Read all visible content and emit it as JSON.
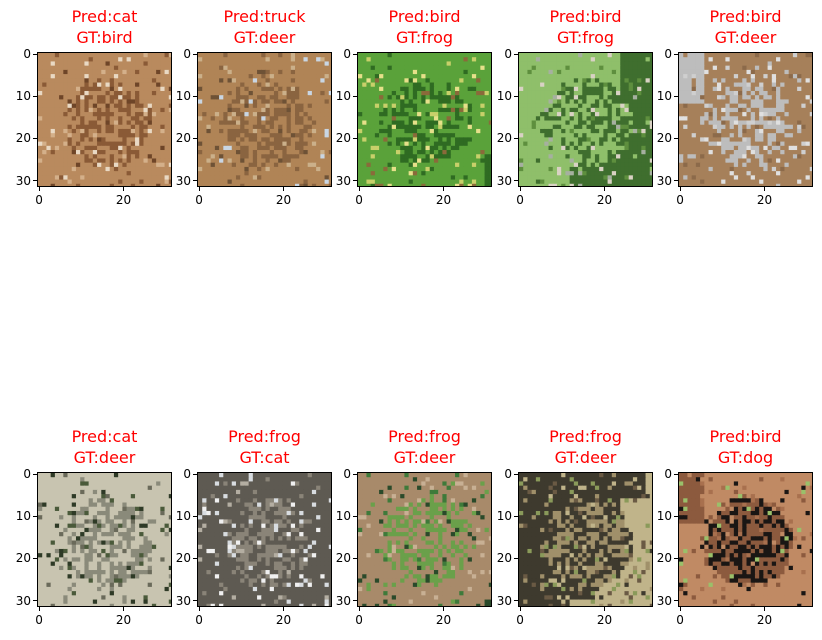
{
  "chart_data": {
    "type": "image-grid",
    "rows": 2,
    "cols": 5,
    "image_size": [
      32,
      32
    ],
    "xlim": [
      -0.5,
      31.5
    ],
    "ylim": [
      31.5,
      -0.5
    ],
    "x_ticks": [
      0,
      20
    ],
    "y_ticks": [
      0,
      10,
      20,
      30
    ],
    "title_color": "#ff0000",
    "panels": [
      {
        "pred": "Pred:cat",
        "gt": "GT:bird",
        "palette": [
          "#e9d9c4",
          "#b98a5e",
          "#8a5a36",
          "#d4b08a",
          "#6e4528"
        ]
      },
      {
        "pred": "Pred:truck",
        "gt": "GT:deer",
        "palette": [
          "#c9d6e3",
          "#b08456",
          "#8a6440",
          "#6e5236",
          "#cbb08a"
        ]
      },
      {
        "pred": "Pred:bird",
        "gt": "GT:frog",
        "palette": [
          "#e6e08a",
          "#5aa23a",
          "#2f6b22",
          "#c8d06a",
          "#8a6a3a"
        ]
      },
      {
        "pred": "Pred:bird",
        "gt": "GT:frog",
        "palette": [
          "#5e8f3e",
          "#8fbf6a",
          "#3f6e2e",
          "#d9d2c4",
          "#a6b0a0"
        ]
      },
      {
        "pred": "Pred:bird",
        "gt": "GT:deer",
        "palette": [
          "#cfcfcf",
          "#bdbdbd",
          "#a6805a",
          "#e0e0e0",
          "#8c6a4a"
        ]
      },
      {
        "pred": "Pred:cat",
        "gt": "GT:deer",
        "palette": [
          "#4a5a3a",
          "#8a8a7a",
          "#c8c4b0",
          "#6a6a5a",
          "#2e3a26"
        ]
      },
      {
        "pred": "Pred:frog",
        "gt": "GT:cat",
        "palette": [
          "#d8dce0",
          "#8a8478",
          "#5e5a52",
          "#b4aea2",
          "#f0f0f0"
        ]
      },
      {
        "pred": "Pred:frog",
        "gt": "GT:deer",
        "palette": [
          "#3e7a3a",
          "#6aa04a",
          "#a88a6a",
          "#2a4a2a",
          "#c8b094"
        ]
      },
      {
        "pred": "Pred:frog",
        "gt": "GT:deer",
        "palette": [
          "#6a5a44",
          "#a0906a",
          "#3e3a2e",
          "#c0b48a",
          "#8a9a5a"
        ]
      },
      {
        "pred": "Pred:bird",
        "gt": "GT:dog",
        "palette": [
          "#a8704e",
          "#1a1614",
          "#8c5a3e",
          "#c08a64",
          "#9ac06a"
        ]
      }
    ]
  }
}
